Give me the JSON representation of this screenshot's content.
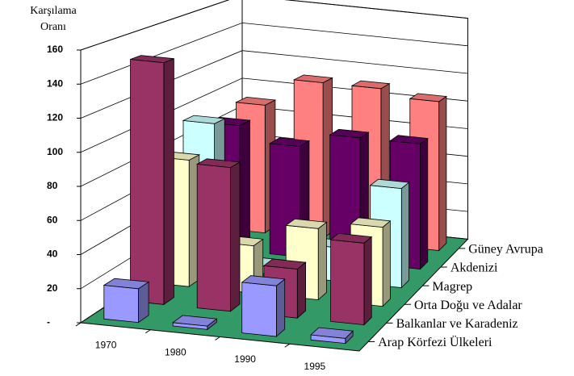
{
  "chart_data": {
    "type": "bar3d",
    "ylabel": [
      "Karşılama",
      "Oranı"
    ],
    "categories": [
      "1970",
      "1980",
      "1990",
      "1995"
    ],
    "series": [
      {
        "name": "Arap Körfezi Ülkeleri",
        "color": "#9999ff",
        "values": [
          20,
          2,
          30,
          3
        ]
      },
      {
        "name": "Balkanlar ve Karadeniz",
        "color": "#993366",
        "values": [
          148,
          88,
          30,
          50
        ]
      },
      {
        "name": "Orta Doğu ve Adalar",
        "color": "#ffffcc",
        "values": [
          80,
          30,
          45,
          50
        ]
      },
      {
        "name": "Magrep",
        "color": "#ccffff",
        "values": [
          95,
          5,
          22,
          65
        ]
      },
      {
        "name": "Akdenizi",
        "color": "#660066",
        "values": [
          85,
          75,
          85,
          85
        ]
      },
      {
        "name": "Güney Avrupa",
        "color": "#ff8080",
        "values": [
          90,
          110,
          110,
          105
        ]
      }
    ],
    "ylim": [
      0,
      160
    ],
    "yticks": [
      {
        "value": 0,
        "label": "-"
      },
      20,
      40,
      60,
      80,
      100,
      120,
      140,
      160
    ],
    "floor_color": "#339966",
    "grid": true
  }
}
